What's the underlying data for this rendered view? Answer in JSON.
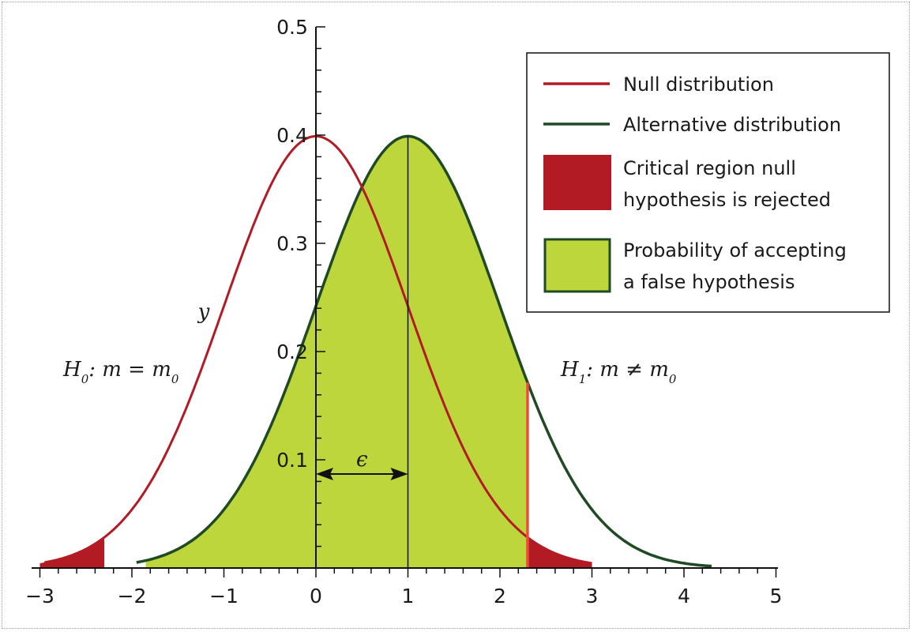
{
  "chart_data": {
    "type": "area",
    "xlim": [
      -3,
      5
    ],
    "ylim": [
      0,
      0.5
    ],
    "x_ticks": [
      -3,
      -2,
      -1,
      0,
      1,
      2,
      3,
      4,
      5
    ],
    "x_tick_labels": [
      "−3",
      "−2",
      "−1",
      "0",
      "1",
      "2",
      "3",
      "4",
      "5"
    ],
    "y_ticks": [
      0.1,
      0.2,
      0.3,
      0.4,
      0.5
    ],
    "y_tick_labels": [
      "0.1",
      "0.2",
      "0.3",
      "0.4",
      "0.5"
    ],
    "ylabel": "y",
    "series": [
      {
        "name": "Null distribution",
        "mean": 0,
        "sd": 1,
        "x": [
          -3,
          -2.5,
          -2,
          -1.5,
          -1,
          -0.5,
          0,
          0.5,
          1,
          1.5,
          2,
          2.5,
          3
        ],
        "y": [
          0.004,
          0.018,
          0.054,
          0.13,
          0.242,
          0.352,
          0.399,
          0.352,
          0.242,
          0.13,
          0.054,
          0.018,
          0.004
        ],
        "color": "#b31b24"
      },
      {
        "name": "Alternative distribution",
        "mean": 1,
        "sd": 1,
        "x": [
          -2,
          -1.5,
          -1,
          -0.5,
          0,
          0.5,
          1,
          1.5,
          2,
          2.5,
          3,
          3.5,
          4,
          4.3
        ],
        "y": [
          0.004,
          0.018,
          0.054,
          0.13,
          0.242,
          0.352,
          0.399,
          0.352,
          0.242,
          0.13,
          0.054,
          0.018,
          0.004,
          0.002
        ],
        "color": "#1f4a23"
      }
    ],
    "regions": [
      {
        "name": "Critical region null hypothesis is rejected",
        "x_ranges": [
          [
            -3,
            -2.3
          ],
          [
            2.3,
            3
          ]
        ],
        "color": "#b31b24"
      },
      {
        "name": "Probability of accepting a false hypothesis",
        "x_range": [
          -1.85,
          2.3
        ],
        "color": "#bcd63b"
      }
    ],
    "critical_value": 2.3,
    "annotations": {
      "h0_main": "H",
      "h0_sub": "0",
      "h0_rest": ": m = m",
      "h0_sub2": "0",
      "h1_main": "H",
      "h1_sub": "1",
      "h1_rest": ": m ≠ m",
      "h1_sub2": "0",
      "epsilon": "ϵ"
    },
    "legend": {
      "placement": "top-right",
      "items": [
        {
          "type": "line",
          "lines": [
            "Null distribution"
          ],
          "color": "#b31b24"
        },
        {
          "type": "line",
          "lines": [
            "Alternative distribution"
          ],
          "color": "#1f4a23"
        },
        {
          "type": "box",
          "lines": [
            "Critical region null",
            "hypothesis is rejected"
          ],
          "color": "#b31b24"
        },
        {
          "type": "box",
          "lines": [
            "Probability of accepting",
            "a false hypothesis"
          ],
          "color": "#bcd63b",
          "border": "#1f4a23"
        }
      ]
    }
  }
}
